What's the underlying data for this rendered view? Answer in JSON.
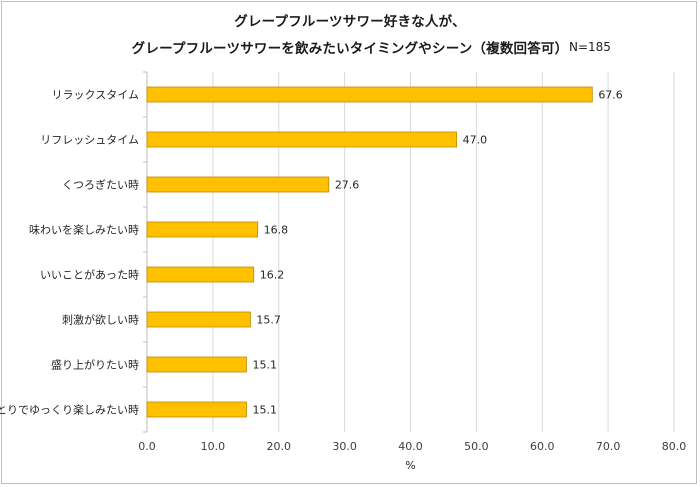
{
  "chart_data": {
    "type": "bar",
    "orientation": "horizontal",
    "title": "グレープフルーツサワー好きな人が、",
    "subtitle": "グレープフルーツサワーを飲みたいタイミングやシーン（複数回答可）",
    "sample_size": "N=185",
    "categories": [
      "リラックスタイム",
      "リフレッシュタイム",
      "くつろぎたい時",
      "味わいを楽しみたい時",
      "いいことがあった時",
      "刺激が欲しい時",
      "盛り上がりたい時",
      "ひとりでゆっくり楽しみたい時"
    ],
    "values": [
      67.6,
      47.0,
      27.6,
      16.8,
      16.2,
      15.7,
      15.1,
      15.1
    ],
    "value_labels": [
      "67.6",
      "47.0",
      "27.6",
      "16.8",
      "16.2",
      "15.7",
      "15.1",
      "15.1"
    ],
    "xlabel": "%",
    "xlim": [
      0,
      80
    ],
    "ticks": [
      "0.0",
      "10.0",
      "20.0",
      "30.0",
      "40.0",
      "50.0",
      "60.0",
      "70.0",
      "80.0"
    ],
    "grid": "vertical",
    "bar_color": "#FFC000",
    "bar_edge_color": "#C08A00"
  }
}
